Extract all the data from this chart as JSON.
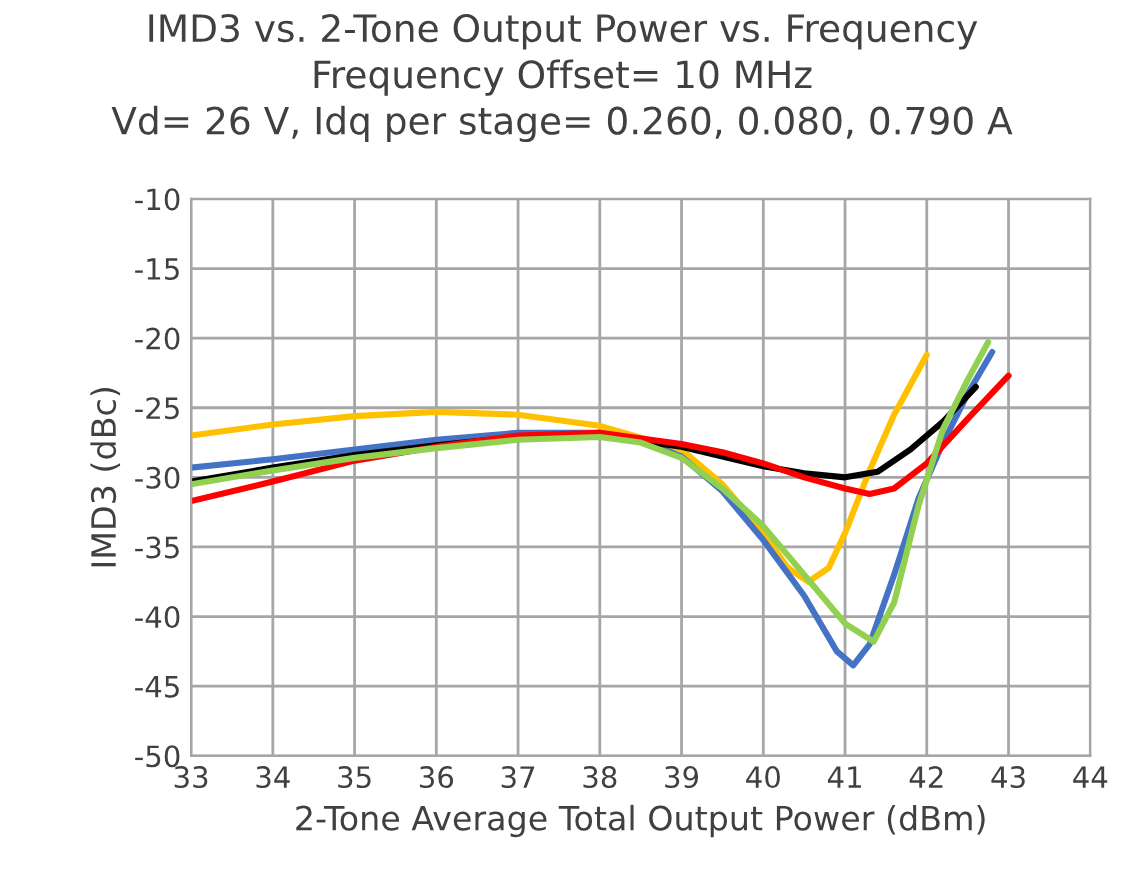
{
  "chart_data": {
    "type": "line",
    "title": "IMD3 vs. 2-Tone Output Power vs. Frequency\nFrequency Offset= 10 MHz\nVd= 26 V, Idq per stage= 0.260, 0.080, 0.790 A",
    "xlabel": "2-Tone Average Total Output Power (dBm)",
    "ylabel": "IMD3 (dBc)",
    "xlim": [
      33,
      44
    ],
    "xticks": [
      33,
      34,
      35,
      36,
      37,
      38,
      39,
      40,
      41,
      42,
      43,
      44
    ],
    "ylim": [
      -50,
      -10
    ],
    "yticks": [
      -50,
      -45,
      -40,
      -35,
      -30,
      -25,
      -20,
      -15,
      -10
    ],
    "grid": true,
    "legend": false,
    "marker": "none",
    "line_style": "solid",
    "series": [
      {
        "color": "#ffc000",
        "x": [
          33,
          34,
          35,
          36,
          37,
          38,
          39,
          39.5,
          40,
          40.3,
          40.55,
          40.8,
          41,
          41.3,
          41.6,
          42
        ],
        "values": [
          -27,
          -26.2,
          -25.6,
          -25.3,
          -25.5,
          -26.3,
          -28,
          -30.5,
          -34,
          -36.5,
          -37.5,
          -36.5,
          -34,
          -29.5,
          -25.5,
          -21.2
        ]
      },
      {
        "color": "#4472c4",
        "x": [
          33,
          34,
          35,
          36,
          37,
          38,
          38.5,
          39,
          39.5,
          40,
          40.5,
          40.9,
          41.1,
          41.3,
          41.6,
          41.9,
          42.2,
          42.5,
          42.8
        ],
        "values": [
          -29.3,
          -28.7,
          -28,
          -27.3,
          -26.8,
          -26.8,
          -27.3,
          -28.5,
          -31,
          -34.5,
          -38.5,
          -42.5,
          -43.5,
          -42,
          -37,
          -31.5,
          -27.5,
          -24,
          -21
        ]
      },
      {
        "color": "#000000",
        "x": [
          33,
          34,
          35,
          36,
          37,
          38,
          39,
          39.5,
          40,
          40.5,
          41,
          41.4,
          41.8,
          42.2,
          42.6
        ],
        "values": [
          -30.3,
          -29.3,
          -28.4,
          -27.7,
          -27.1,
          -27,
          -27.8,
          -28.5,
          -29.2,
          -29.7,
          -30,
          -29.6,
          -28,
          -26,
          -23.5
        ]
      },
      {
        "color": "#ff0000",
        "x": [
          33,
          34,
          35,
          36,
          37,
          38,
          39,
          39.5,
          40,
          40.5,
          41,
          41.3,
          41.6,
          42,
          42.5,
          43
        ],
        "values": [
          -31.7,
          -30.3,
          -28.8,
          -27.8,
          -27,
          -26.8,
          -27.6,
          -28.2,
          -29,
          -30,
          -30.8,
          -31.2,
          -30.8,
          -29,
          -25.8,
          -22.7
        ]
      },
      {
        "color": "#92d050",
        "x": [
          33,
          34,
          35,
          36,
          37,
          38,
          38.5,
          39,
          39.5,
          40,
          40.5,
          41,
          41.35,
          41.6,
          41.9,
          42.2,
          42.5,
          42.75
        ],
        "values": [
          -30.5,
          -29.5,
          -28.6,
          -27.9,
          -27.3,
          -27.1,
          -27.5,
          -28.6,
          -30.8,
          -33.5,
          -37,
          -40.5,
          -41.8,
          -39,
          -32,
          -26.5,
          -23,
          -20.3
        ]
      }
    ]
  }
}
